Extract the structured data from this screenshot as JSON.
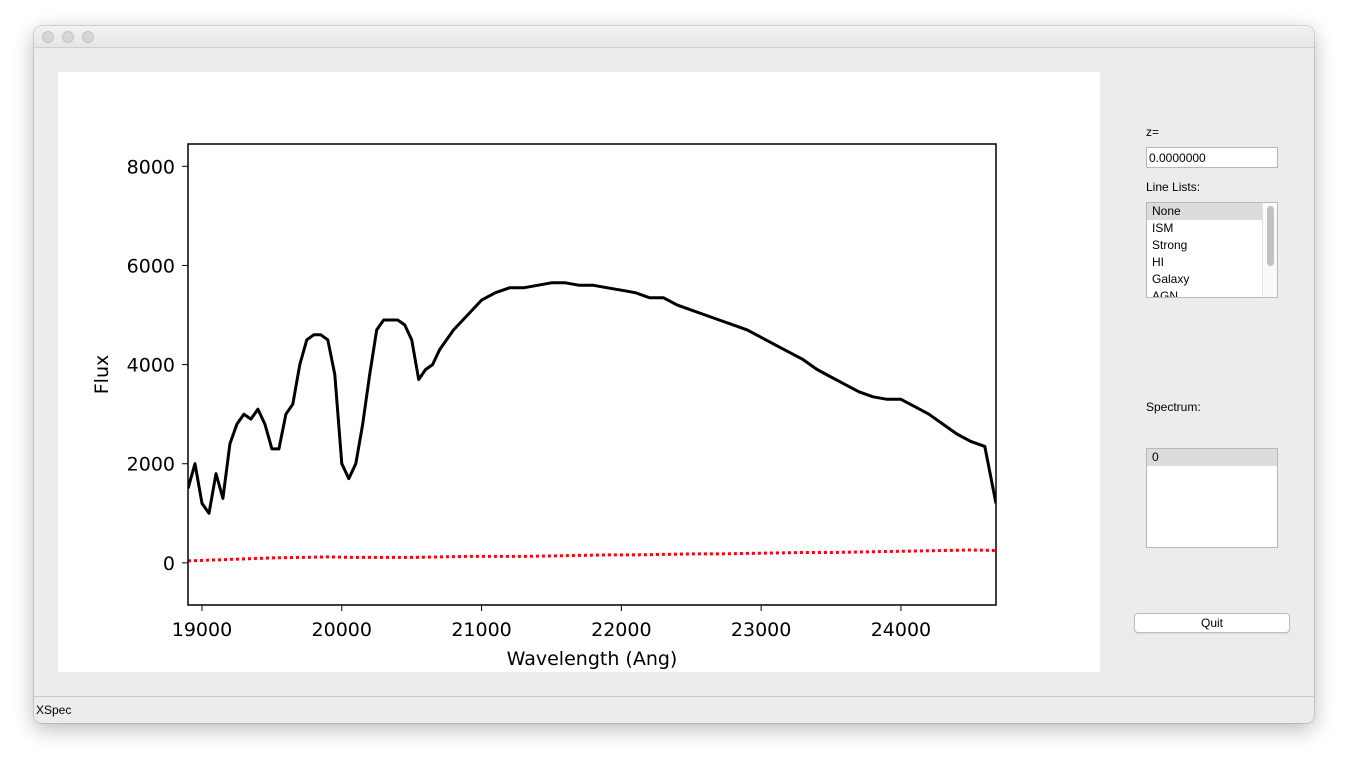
{
  "window": {
    "status_text": "XSpec"
  },
  "controls": {
    "z_label": "z=",
    "z_value": "0.0000000",
    "line_lists_label": "Line Lists:",
    "line_lists": [
      "None",
      "ISM",
      "Strong",
      "HI",
      "Galaxy",
      "AGN"
    ],
    "line_lists_selected": "None",
    "spectrum_label": "Spectrum:",
    "spectra": [
      "0"
    ],
    "spectrum_selected": "0",
    "quit_label": "Quit"
  },
  "chart_data": {
    "type": "line",
    "title": "",
    "xlabel": "Wavelength (Ang)",
    "ylabel": "Flux",
    "xlim": [
      18900,
      24680
    ],
    "ylim": [
      -850,
      8450
    ],
    "xticks": [
      19000,
      20000,
      21000,
      22000,
      23000,
      24000
    ],
    "yticks": [
      0,
      2000,
      4000,
      6000,
      8000
    ],
    "grid": false,
    "legend": "none",
    "series": [
      {
        "color": "#000000",
        "style": "solid",
        "x": [
          18900,
          18950,
          19000,
          19050,
          19100,
          19150,
          19200,
          19250,
          19300,
          19350,
          19400,
          19450,
          19500,
          19550,
          19600,
          19650,
          19700,
          19750,
          19800,
          19850,
          19900,
          19950,
          20000,
          20050,
          20100,
          20150,
          20200,
          20250,
          20300,
          20350,
          20400,
          20450,
          20500,
          20550,
          20600,
          20650,
          20700,
          20750,
          20800,
          20900,
          21000,
          21100,
          21200,
          21300,
          21400,
          21500,
          21600,
          21700,
          21800,
          21900,
          22000,
          22100,
          22200,
          22300,
          22400,
          22500,
          22600,
          22700,
          22800,
          22900,
          23000,
          23100,
          23200,
          23300,
          23400,
          23500,
          23600,
          23700,
          23800,
          23900,
          24000,
          24100,
          24200,
          24300,
          24400,
          24500,
          24600,
          24680
        ],
        "y": [
          1500,
          2000,
          1200,
          1000,
          1800,
          1300,
          2400,
          2800,
          3000,
          2900,
          3100,
          2800,
          2300,
          2300,
          3000,
          3200,
          4000,
          4500,
          4600,
          4600,
          4500,
          3800,
          2000,
          1700,
          2000,
          2800,
          3800,
          4700,
          4900,
          4900,
          4900,
          4800,
          4500,
          3700,
          3900,
          4000,
          4300,
          4500,
          4700,
          5000,
          5300,
          5450,
          5550,
          5550,
          5600,
          5650,
          5650,
          5600,
          5600,
          5550,
          5500,
          5450,
          5350,
          5350,
          5200,
          5100,
          5000,
          4900,
          4800,
          4700,
          4550,
          4400,
          4250,
          4100,
          3900,
          3750,
          3600,
          3450,
          3350,
          3300,
          3300,
          3150,
          3000,
          2800,
          2600,
          2450,
          2350,
          1200
        ]
      },
      {
        "color": "#ff0000",
        "style": "dotted",
        "x": [
          18900,
          19100,
          19300,
          19500,
          19700,
          19900,
          20100,
          20300,
          20500,
          20700,
          20900,
          21100,
          21300,
          21500,
          21700,
          21900,
          22100,
          22300,
          22500,
          22700,
          22900,
          23100,
          23300,
          23500,
          23700,
          23900,
          24100,
          24300,
          24500,
          24680
        ],
        "y": [
          40,
          60,
          80,
          100,
          110,
          120,
          110,
          110,
          110,
          120,
          130,
          130,
          130,
          140,
          150,
          160,
          160,
          170,
          180,
          180,
          190,
          200,
          210,
          210,
          220,
          230,
          240,
          250,
          260,
          250
        ]
      }
    ]
  }
}
